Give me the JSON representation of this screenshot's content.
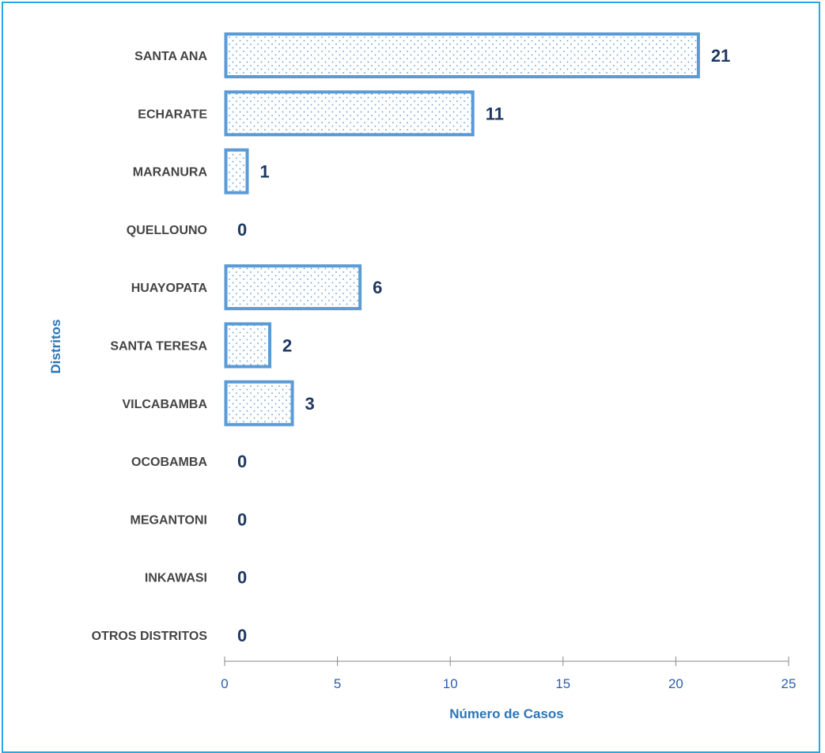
{
  "chart_data": {
    "type": "bar",
    "orientation": "horizontal",
    "categories": [
      "SANTA ANA",
      "ECHARATE",
      "MARANURA",
      "QUELLOUNO",
      "HUAYOPATA",
      "SANTA TERESA",
      "VILCABAMBA",
      "OCOBAMBA",
      "MEGANTONI",
      "INKAWASI",
      "OTROS DISTRITOS"
    ],
    "values": [
      21,
      11,
      1,
      0,
      6,
      2,
      3,
      0,
      0,
      0,
      0
    ],
    "value_labels": [
      "21",
      "11",
      "1",
      "0",
      "6",
      "2",
      "3",
      "0",
      "0",
      "0",
      "0"
    ],
    "title": "",
    "xlabel": "Número de Casos",
    "ylabel": "Distritos",
    "xlim": [
      0,
      25
    ],
    "xticks": [
      0,
      5,
      10,
      15,
      20,
      25
    ],
    "xtick_labels": [
      "0",
      "5",
      "10",
      "15",
      "20",
      "25"
    ],
    "grid": false,
    "legend": "none",
    "bar_fill": "dotted",
    "colors": {
      "bar_border": "#5b9bd5",
      "bar_dots": "#5b9bd5",
      "value_label": "#1f3864",
      "category_label": "#444444",
      "tick_label": "#2e5fa8",
      "axis_title": "#2e75b6",
      "frame": "#29a8e0",
      "axis_line": "#888888"
    }
  }
}
